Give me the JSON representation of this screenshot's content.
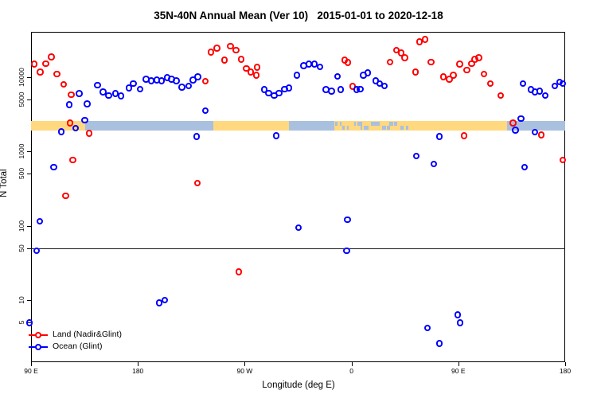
{
  "title": "35N-40N Annual Mean (Ver 10)   2015-01-01 to 2020-12-18",
  "colors": {
    "land_marker": "#ff0000",
    "ocean_marker": "#0000ff",
    "band_land": "#ffd87f",
    "band_ocean": "#a9c0df",
    "threshold_line": "#1a1a1a"
  },
  "legend": [
    {
      "label": "Land (Nadir&Glint)",
      "color": "#ff0000"
    },
    {
      "label": "Ocean (Glint)",
      "color": "#0000ff"
    }
  ],
  "chart_data": {
    "type": "scatter",
    "title": "35N-40N Annual Mean (Ver 10)   2015-01-01 to 2020-12-18",
    "xlabel": "Longitude (deg E)",
    "ylabel": "N Total",
    "y_scale": "log10",
    "x_axis_range_deg": [
      90,
      540
    ],
    "x_axis_wrap_note": "x is longitude plotted continuously eastward: 90=90E, 180=180, 270=90W, 360=0, 450=90E, 540=180",
    "x_ticks": [
      {
        "deg": 90,
        "label": "90 E"
      },
      {
        "deg": 180,
        "label": "180"
      },
      {
        "deg": 270,
        "label": "90 W"
      },
      {
        "deg": 360,
        "label": "0"
      },
      {
        "deg": 450,
        "label": "90 E"
      },
      {
        "deg": 540,
        "label": "180"
      }
    ],
    "y_ticks": [
      {
        "value": 10000,
        "label": "10000"
      },
      {
        "value": 5000,
        "label": "5000"
      },
      {
        "value": 1000,
        "label": "1000"
      },
      {
        "value": 500,
        "label": "500"
      },
      {
        "value": 100,
        "label": "100"
      },
      {
        "value": 50,
        "label": "50"
      },
      {
        "value": 10,
        "label": "10"
      },
      {
        "value": 5,
        "label": "5"
      }
    ],
    "threshold_line_value": 50,
    "surface_band": {
      "n_top": 2550,
      "n_bottom": 1900,
      "segments": [
        {
          "from_deg": 90.0,
          "to_deg": 135.6,
          "type": "land"
        },
        {
          "from_deg": 135.6,
          "to_deg": 243.6,
          "type": "ocean"
        },
        {
          "from_deg": 243.6,
          "to_deg": 307.3,
          "type": "land"
        },
        {
          "from_deg": 307.3,
          "to_deg": 345.5,
          "type": "ocean"
        },
        {
          "from_deg": 345.5,
          "to_deg": 412.6,
          "type": "mixed"
        },
        {
          "from_deg": 412.6,
          "to_deg": 491.1,
          "type": "land"
        },
        {
          "from_deg": 491.1,
          "to_deg": 540.0,
          "type": "ocean"
        }
      ]
    },
    "series": [
      {
        "name": "Land (Nadir&Glint)",
        "color": "#ff0000",
        "points": [
          [
            92.7,
            14700
          ],
          [
            98.0,
            11500
          ],
          [
            102.7,
            15000
          ],
          [
            107.4,
            18300
          ],
          [
            112.1,
            10900
          ],
          [
            117.5,
            7900
          ],
          [
            124.2,
            5700
          ],
          [
            122.9,
            2370
          ],
          [
            139.0,
            1720
          ],
          [
            125.5,
            760
          ],
          [
            119.5,
            250
          ],
          [
            236.9,
            8700
          ],
          [
            241.6,
            21200
          ],
          [
            246.9,
            24000
          ],
          [
            253.0,
            16600
          ],
          [
            258.3,
            25800
          ],
          [
            263.0,
            22800
          ],
          [
            267.1,
            17000
          ],
          [
            271.7,
            12900
          ],
          [
            275.1,
            11500
          ],
          [
            280.5,
            13300
          ],
          [
            279.8,
            10400
          ],
          [
            230.2,
            373
          ],
          [
            265.1,
            24
          ],
          [
            354.3,
            16600
          ],
          [
            357.0,
            15400
          ],
          [
            361.0,
            7400
          ],
          [
            392.5,
            15700
          ],
          [
            397.9,
            22800
          ],
          [
            401.9,
            20700
          ],
          [
            405.2,
            17900
          ],
          [
            414.0,
            11500
          ],
          [
            417.3,
            29200
          ],
          [
            422.0,
            31500
          ],
          [
            427.3,
            15700
          ],
          [
            437.4,
            9900
          ],
          [
            442.7,
            9200
          ],
          [
            446.1,
            10400
          ],
          [
            451.4,
            14700
          ],
          [
            457.5,
            12300
          ],
          [
            461.5,
            15000
          ],
          [
            464.2,
            17000
          ],
          [
            467.5,
            17900
          ],
          [
            471.6,
            10900
          ],
          [
            477.0,
            8100
          ],
          [
            485.7,
            5600
          ],
          [
            496.4,
            2400
          ],
          [
            454.9,
            1600
          ],
          [
            519.9,
            1640
          ],
          [
            538.0,
            760
          ]
        ]
      },
      {
        "name": "Ocean (Glint)",
        "color": "#0000ff",
        "points": [
          [
            130.9,
            5900
          ],
          [
            122.2,
            4200
          ],
          [
            137.6,
            4280
          ],
          [
            127.6,
            2040
          ],
          [
            135.6,
            2610
          ],
          [
            115.5,
            1810
          ],
          [
            109.4,
            610
          ],
          [
            97.4,
            114
          ],
          [
            94.7,
            46
          ],
          [
            88.9,
            4.9
          ],
          [
            146.3,
            7700
          ],
          [
            151.0,
            6200
          ],
          [
            155.7,
            5600
          ],
          [
            161.1,
            5900
          ],
          [
            165.8,
            5500
          ],
          [
            172.5,
            7000
          ],
          [
            176.5,
            8100
          ],
          [
            181.9,
            6800
          ],
          [
            187.2,
            9200
          ],
          [
            191.3,
            8800
          ],
          [
            196.0,
            9000
          ],
          [
            200.0,
            8800
          ],
          [
            204.7,
            9700
          ],
          [
            208.7,
            9200
          ],
          [
            212.7,
            8800
          ],
          [
            217.4,
            7200
          ],
          [
            222.8,
            7500
          ],
          [
            226.8,
            9000
          ],
          [
            230.8,
            9900
          ],
          [
            236.9,
            3500
          ],
          [
            229.5,
            1560
          ],
          [
            198.0,
            9.1
          ],
          [
            202.7,
            10.0
          ],
          [
            286.5,
            6700
          ],
          [
            290.5,
            6000
          ],
          [
            295.2,
            5600
          ],
          [
            299.2,
            6000
          ],
          [
            303.9,
            6800
          ],
          [
            307.3,
            7000
          ],
          [
            314.0,
            10400
          ],
          [
            320.0,
            14000
          ],
          [
            324.1,
            14700
          ],
          [
            328.8,
            14700
          ],
          [
            333.5,
            13600
          ],
          [
            338.8,
            6700
          ],
          [
            343.5,
            6400
          ],
          [
            348.2,
            10100
          ],
          [
            350.9,
            6700
          ],
          [
            364.3,
            6700
          ],
          [
            367.6,
            6800
          ],
          [
            370.3,
            10400
          ],
          [
            373.7,
            11200
          ],
          [
            380.4,
            8800
          ],
          [
            383.8,
            8100
          ],
          [
            387.8,
            7500
          ],
          [
            296.6,
            1600
          ],
          [
            315.4,
            94
          ],
          [
            356.9,
            120
          ],
          [
            356.2,
            46
          ],
          [
            414.6,
            860
          ],
          [
            429.4,
            670
          ],
          [
            434.1,
            1560
          ],
          [
            505.8,
            610
          ],
          [
            514.6,
            1800
          ],
          [
            503.1,
            2740
          ],
          [
            498.4,
            1900
          ],
          [
            504.5,
            8100
          ],
          [
            511.2,
            6700
          ],
          [
            514.6,
            6200
          ],
          [
            518.6,
            6400
          ],
          [
            523.3,
            5600
          ],
          [
            531.3,
            7500
          ],
          [
            535.4,
            8500
          ],
          [
            538.0,
            8100
          ],
          [
            424.0,
            4.2
          ],
          [
            434.1,
            2.6
          ],
          [
            449.5,
            6.3
          ],
          [
            451.5,
            4.9
          ]
        ]
      }
    ]
  }
}
